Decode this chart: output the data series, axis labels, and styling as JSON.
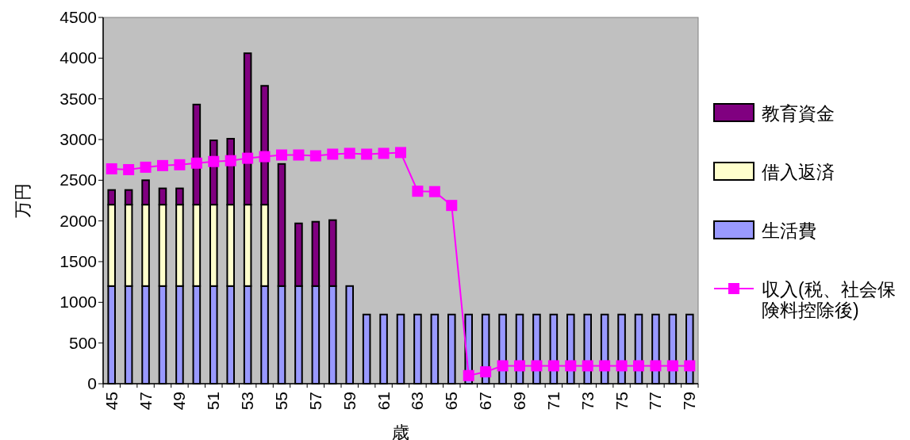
{
  "chart_data": {
    "type": "bar",
    "stacked": true,
    "ylabel": "万円",
    "xlabel": "歳",
    "categories": [
      "45",
      null,
      "47",
      null,
      "49",
      null,
      "51",
      null,
      "53",
      null,
      "55",
      null,
      "57",
      null,
      "59",
      null,
      "61",
      null,
      "63",
      null,
      "65",
      null,
      "67",
      null,
      "69",
      null,
      "71",
      null,
      "73",
      null,
      "75",
      null,
      "77",
      null,
      "79"
    ],
    "ylim": [
      0,
      4500
    ],
    "yticks": [
      0,
      500,
      1000,
      1500,
      2000,
      2500,
      3000,
      3500,
      4000,
      4500
    ],
    "grid": false,
    "legend": "right",
    "marker": "square",
    "series": [
      {
        "name": "生活費",
        "color": "#9999ff",
        "values": [
          1200,
          1200,
          1200,
          1200,
          1200,
          1200,
          1200,
          1200,
          1200,
          1200,
          1200,
          1200,
          1200,
          1200,
          1200,
          850,
          850,
          850,
          850,
          850,
          850,
          850,
          850,
          850,
          850,
          850,
          850,
          850,
          850,
          850,
          850,
          850,
          850,
          850,
          850
        ]
      },
      {
        "name": "借入返済",
        "color": "#ffffcc",
        "values": [
          1000,
          1000,
          1000,
          1000,
          1000,
          1000,
          1000,
          1000,
          1000,
          1000,
          0,
          0,
          0,
          0,
          0,
          0,
          0,
          0,
          0,
          0,
          0,
          0,
          0,
          0,
          0,
          0,
          0,
          0,
          0,
          0,
          0,
          0,
          0,
          0,
          0
        ]
      },
      {
        "name": "教育資金",
        "color": "#800080",
        "values": [
          180,
          180,
          300,
          200,
          200,
          1230,
          790,
          810,
          1860,
          1460,
          1500,
          770,
          790,
          810,
          0,
          0,
          0,
          0,
          0,
          0,
          0,
          0,
          0,
          0,
          0,
          0,
          0,
          0,
          0,
          0,
          0,
          0,
          0,
          0,
          0
        ]
      },
      {
        "name": "収入(税、社会保険料控除後)",
        "type": "line",
        "color": "#ff00ff",
        "values": [
          2640,
          2630,
          2660,
          2680,
          2690,
          2710,
          2730,
          2740,
          2770,
          2790,
          2810,
          2810,
          2800,
          2820,
          2830,
          2820,
          2830,
          2840,
          2365,
          2360,
          2190,
          100,
          146,
          220,
          220,
          220,
          220,
          220,
          220,
          220,
          220,
          220,
          220,
          220,
          220
        ]
      }
    ]
  }
}
